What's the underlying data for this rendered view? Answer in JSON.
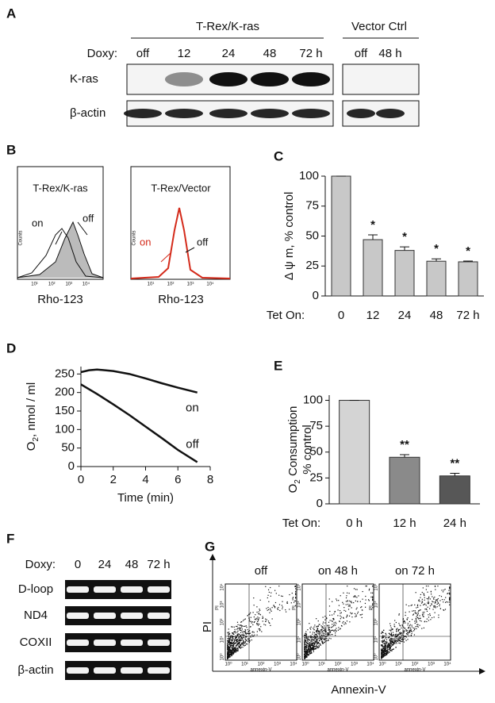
{
  "panel_a": {
    "label": "A",
    "group1": "T-Rex/K-ras",
    "group2": "Vector Ctrl",
    "row_title": "Doxy:",
    "lanes1": [
      "off",
      "12",
      "24",
      "48",
      "72 h"
    ],
    "lanes2": [
      "off",
      "48 h"
    ],
    "rows": [
      "K-ras",
      "β-actin"
    ]
  },
  "panel_b": {
    "label": "B",
    "plots": [
      {
        "title": "T-Rex/K-ras",
        "on": "on",
        "off": "off"
      },
      {
        "title": "T-Rex/Vector",
        "on": "on",
        "off": "off"
      }
    ],
    "ylabel": "Counts",
    "xticks": [
      "10¹",
      "10²",
      "10³",
      "10⁴"
    ],
    "xlabel": "Rho-123"
  },
  "chart_data": [
    {
      "type": "bar",
      "label": "C",
      "ylabel": "Δ ψ m, % control",
      "xlabel": "Tet On:",
      "categories": [
        "0",
        "12",
        "24",
        "48",
        "72 h"
      ],
      "values": [
        100,
        47,
        38,
        29,
        28.5
      ],
      "errors": [
        0,
        4,
        3,
        2,
        0.6
      ],
      "annotations": [
        null,
        "*",
        "*",
        "*",
        "*"
      ],
      "color": "#c8c8c8",
      "ylim": [
        0,
        100
      ],
      "yticks": [
        0,
        25,
        50,
        75,
        100
      ]
    },
    {
      "type": "line",
      "label": "D",
      "ylabel": [
        "O",
        "2",
        ", nmol / ml"
      ],
      "xlabel": "Time (min)",
      "series": [
        {
          "name": "on",
          "color": "#111111",
          "x": [
            0,
            0.5,
            1,
            2,
            3,
            4,
            5,
            6,
            7.2
          ],
          "values": [
            255,
            260,
            262,
            258,
            250,
            238,
            225,
            213,
            200
          ]
        },
        {
          "name": "off",
          "color": "#111111",
          "x": [
            0,
            1,
            2,
            3,
            4,
            5,
            6,
            7.2
          ],
          "values": [
            222,
            196,
            168,
            139,
            108,
            77,
            45,
            12
          ]
        }
      ],
      "xlim": [
        0,
        8
      ],
      "xticks": [
        0,
        2,
        4,
        6,
        8
      ],
      "ylim": [
        0,
        270
      ],
      "yticks": [
        0,
        50,
        100,
        150,
        200,
        250
      ]
    },
    {
      "type": "bar",
      "label": "E",
      "ylabel": [
        "O",
        "2",
        " Consumption",
        "% control"
      ],
      "xlabel": "Tet On:",
      "categories": [
        "0 h",
        "12 h",
        "24 h"
      ],
      "values": [
        100,
        45,
        27
      ],
      "errors": [
        0,
        2.5,
        2.5
      ],
      "annotations": [
        null,
        "**",
        "**"
      ],
      "colors": [
        "#d4d4d4",
        "#8a8a8a",
        "#575757"
      ],
      "ylim": [
        0,
        105
      ],
      "yticks": [
        0,
        25,
        50,
        75,
        100
      ]
    }
  ],
  "panel_f": {
    "label": "F",
    "row_title": "Doxy:",
    "lanes": [
      "0",
      "24",
      "48",
      "72 h"
    ],
    "rows": [
      "D-loop",
      "ND4",
      "COXII",
      "β-actin"
    ]
  },
  "panel_g": {
    "label": "G",
    "titles": [
      "off",
      "on 48 h",
      "on 72 h"
    ],
    "ylabel": "PI",
    "xlabel": "Annexin-V",
    "inner_xlabel": "annexin-V",
    "inner_ylabel": "PI",
    "ticks": [
      "10⁰",
      "10¹",
      "10²",
      "10³",
      "10⁴"
    ]
  }
}
